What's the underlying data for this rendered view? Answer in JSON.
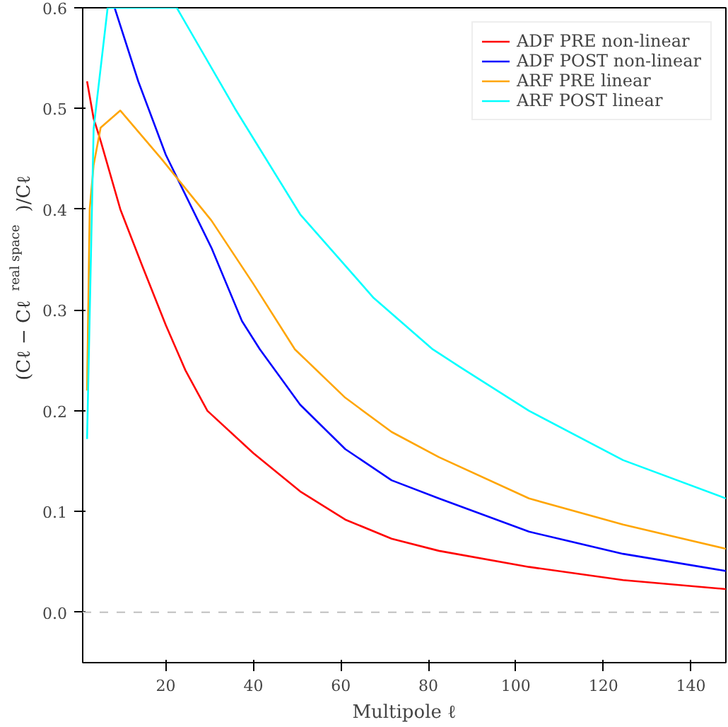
{
  "chart_data": {
    "type": "line",
    "xlabel": "Multipole ℓ",
    "ylabel": "(Cℓ − Cℓ$^{real space}$)/Cℓ",
    "xlim": [
      1,
      148
    ],
    "ylim": [
      -0.05,
      0.6
    ],
    "xticks": [
      20,
      40,
      60,
      80,
      100,
      120,
      140
    ],
    "yticks": [
      {
        "value": 0,
        "label": "0.0"
      },
      {
        "value": 0.1,
        "label": "0.1"
      },
      {
        "value": 0.2,
        "label": "0.2"
      },
      {
        "value": 0.3,
        "label": "0.3"
      },
      {
        "value": 0.4,
        "label": "0.4"
      },
      {
        "value": 0.5,
        "label": "0.5"
      },
      {
        "value": 0.6,
        "label": "0.6"
      }
    ],
    "grid": false,
    "legend": "top right",
    "line_style": "solid",
    "ref_lines": [
      {
        "axis": "y",
        "value": 0,
        "label": null,
        "color": "#c0c0c0",
        "line_style": "dashed"
      }
    ],
    "series": [
      {
        "name": "ADF PRE non-linear",
        "color": "#ff0000",
        "x": [
          2,
          3.5,
          5.1,
          9.6,
          14.6,
          20,
          24.5,
          29.5,
          40,
          50.7,
          61,
          71.6,
          82.4,
          103,
          124.5,
          148
        ],
        "values": [
          0.527,
          0.49,
          0.468,
          0.4,
          0.344,
          0.285,
          0.24,
          0.2,
          0.158,
          0.12,
          0.092,
          0.073,
          0.061,
          0.045,
          0.032,
          0.023
        ]
      },
      {
        "name": "ADF POST non-linear",
        "color": "#0000ff",
        "x": [
          8.3,
          13.7,
          20,
          30.4,
          37.4,
          41.5,
          50.7,
          61,
          71.6,
          82.4,
          103,
          124.5,
          148
        ],
        "values": [
          0.6,
          0.527,
          0.454,
          0.362,
          0.289,
          0.261,
          0.206,
          0.162,
          0.131,
          0.113,
          0.08,
          0.058,
          0.041
        ]
      },
      {
        "name": "ARF PRE linear",
        "color": "#ffa500",
        "x": [
          2,
          2.6,
          3.5,
          5.1,
          9.6,
          19,
          30.4,
          40,
          49.5,
          61,
          71.6,
          82.4,
          103,
          124.5,
          148
        ],
        "values": [
          0.22,
          0.4,
          0.444,
          0.481,
          0.498,
          0.45,
          0.389,
          0.326,
          0.261,
          0.213,
          0.179,
          0.154,
          0.113,
          0.087,
          0.063
        ]
      },
      {
        "name": "ARF POST linear",
        "color": "#00ffff",
        "x": [
          2,
          3.5,
          6.7,
          22.5,
          35.8,
          50.7,
          67.5,
          81,
          87.4,
          103,
          124.5,
          148
        ],
        "values": [
          0.172,
          0.48,
          0.6,
          0.6,
          0.5,
          0.395,
          0.312,
          0.261,
          0.243,
          0.2,
          0.151,
          0.113
        ]
      }
    ]
  }
}
